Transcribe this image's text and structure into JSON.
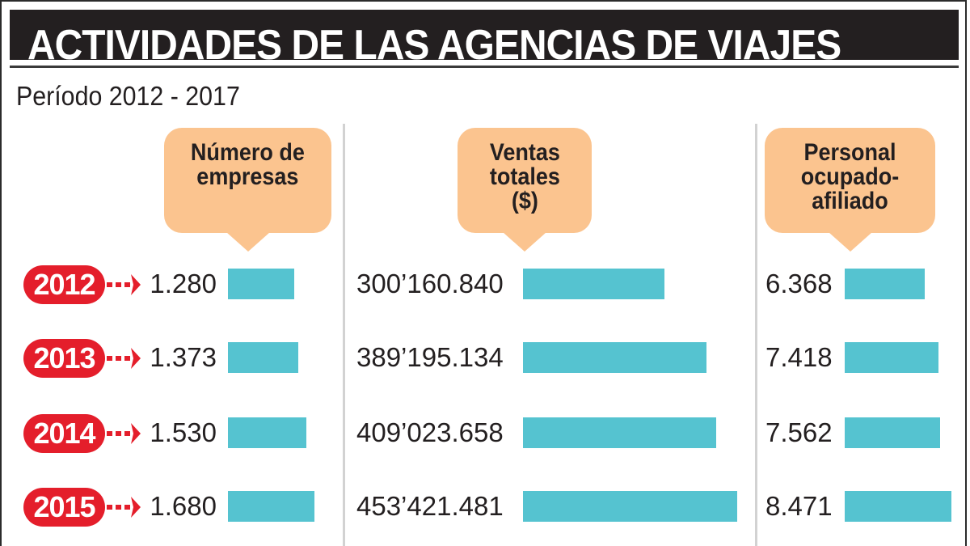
{
  "header": {
    "title": "ACTIVIDADES DE LAS AGENCIAS DE VIAJES",
    "subtitle": "Período 2012 - 2017"
  },
  "colors": {
    "year_badge": "#e41e2b",
    "bar": "#55c3d0",
    "callout": "#fbc48f",
    "title_bg": "#231f20"
  },
  "chart_data": [
    {
      "type": "bar",
      "orientation": "horizontal",
      "title_lines": [
        "Número de",
        "empresas"
      ],
      "title": "Número de empresas",
      "categories": [
        "2012",
        "2013",
        "2014",
        "2015"
      ],
      "values": [
        1280,
        1373,
        1530,
        1680
      ],
      "labels": [
        "1.280",
        "1.373",
        "1.530",
        "1.680"
      ]
    },
    {
      "type": "bar",
      "orientation": "horizontal",
      "title_lines": [
        "Ventas",
        "totales",
        "($)"
      ],
      "title": "Ventas totales ($)",
      "categories": [
        "2012",
        "2013",
        "2014",
        "2015"
      ],
      "values": [
        300160840,
        389195134,
        409023658,
        453421481
      ],
      "labels": [
        "300’160.840",
        "389’195.134",
        "409’023.658",
        "453’421.481"
      ]
    },
    {
      "type": "bar",
      "orientation": "horizontal",
      "title_lines": [
        "Personal",
        "ocupado-",
        "afiliado"
      ],
      "title": "Personal ocupado-afiliado",
      "categories": [
        "2012",
        "2013",
        "2014",
        "2015"
      ],
      "values": [
        6368,
        7418,
        7562,
        8471
      ],
      "labels": [
        "6.368",
        "7.418",
        "7.562",
        "8.471"
      ]
    }
  ]
}
